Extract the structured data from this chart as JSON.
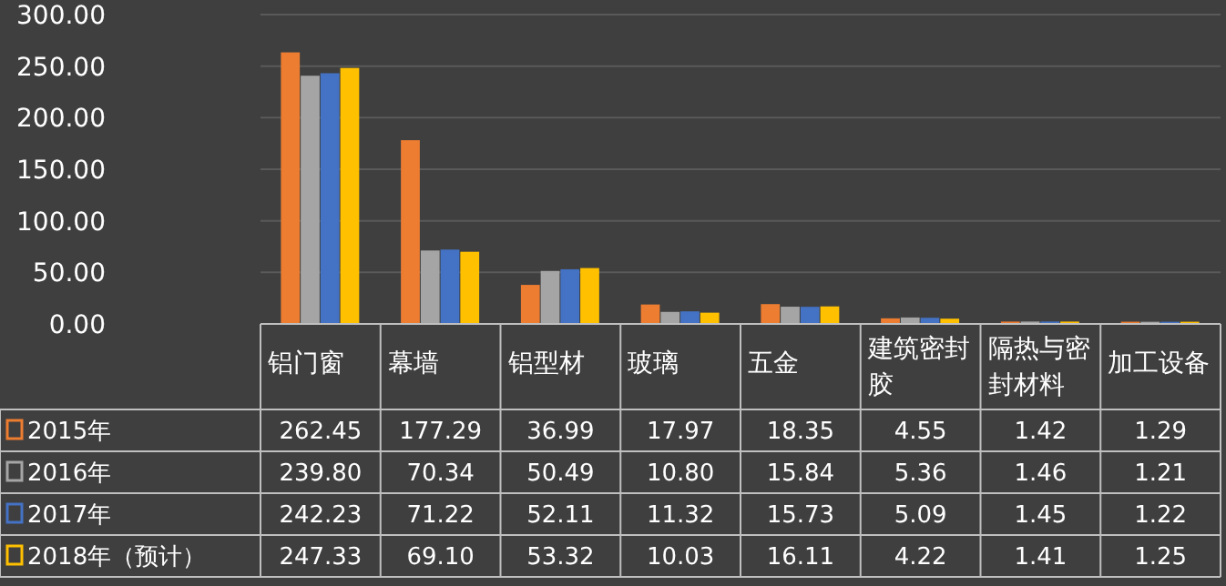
{
  "chart_data": {
    "type": "bar",
    "categories": [
      "铝门窗",
      "幕墙",
      "铝型材",
      "玻璃",
      "五金",
      "建筑密封胶",
      "隔热与密封材料",
      "加工设备"
    ],
    "series": [
      {
        "name": "2015年",
        "color": "#ed7d31",
        "values": [
          262.45,
          177.29,
          36.99,
          17.97,
          18.35,
          4.55,
          1.42,
          1.29
        ],
        "value_labels": [
          "262.45",
          "177.29",
          "36.99",
          "17.97",
          "18.35",
          "4.55",
          "1.42",
          "1.29"
        ]
      },
      {
        "name": "2016年",
        "color": "#a5a5a5",
        "values": [
          239.8,
          70.34,
          50.49,
          10.8,
          15.84,
          5.36,
          1.46,
          1.21
        ],
        "value_labels": [
          "239.80",
          "70.34",
          "50.49",
          "10.80",
          "15.84",
          "5.36",
          "1.46",
          "1.21"
        ]
      },
      {
        "name": "2017年",
        "color": "#4472c4",
        "values": [
          242.23,
          71.22,
          52.11,
          11.32,
          15.73,
          5.09,
          1.45,
          1.22
        ],
        "value_labels": [
          "242.23",
          "71.22",
          "52.11",
          "11.32",
          "15.73",
          "5.09",
          "1.45",
          "1.22"
        ]
      },
      {
        "name": "2018年（预计）",
        "color": "#ffc000",
        "values": [
          247.33,
          69.1,
          53.32,
          10.03,
          16.11,
          4.22,
          1.41,
          1.25
        ],
        "value_labels": [
          "247.33",
          "69.10",
          "53.32",
          "10.03",
          "16.11",
          "4.22",
          "1.41",
          "1.25"
        ]
      }
    ],
    "ylim": [
      0,
      300
    ],
    "yticks": [
      {
        "value": 0,
        "label": "0.00"
      },
      {
        "value": 50,
        "label": "50.00"
      },
      {
        "value": 100,
        "label": "100.00"
      },
      {
        "value": 150,
        "label": "150.00"
      },
      {
        "value": 200,
        "label": "200.00"
      },
      {
        "value": 250,
        "label": "250.00"
      },
      {
        "value": 300,
        "label": "300.00"
      }
    ],
    "grid": "y",
    "legend": "bottom"
  }
}
